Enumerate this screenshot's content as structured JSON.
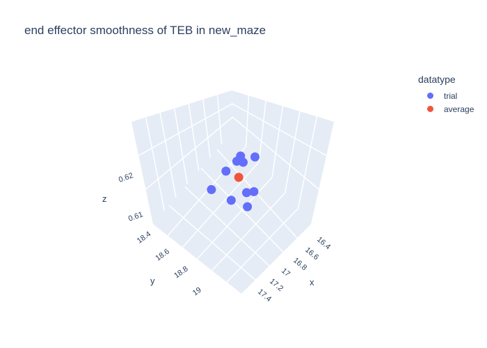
{
  "chart_data": {
    "type": "scatter3d",
    "title": "end effector smoothness of TEB in new_maze",
    "axes": {
      "x": {
        "label": "x",
        "ticks": [
          "16.4",
          "16.6",
          "16.8",
          "17",
          "17.2",
          "17.4"
        ]
      },
      "y": {
        "label": "y",
        "ticks": [
          "18.4",
          "18.6",
          "18.8",
          "19"
        ]
      },
      "z": {
        "label": "z",
        "ticks": [
          "0.61",
          "0.62"
        ]
      }
    },
    "legend": {
      "title": "datatype",
      "placement": "top-right",
      "items": [
        {
          "label": "trial",
          "color": "#636efa"
        },
        {
          "label": "average",
          "color": "#ef553b"
        }
      ]
    },
    "series": [
      {
        "name": "trial",
        "color": "#636efa",
        "points": [
          {
            "x": 16.95,
            "y": 18.45,
            "z": 0.62
          },
          {
            "x": 16.85,
            "y": 18.6,
            "z": 0.62
          },
          {
            "x": 16.7,
            "y": 18.55,
            "z": 0.619
          },
          {
            "x": 16.75,
            "y": 18.65,
            "z": 0.62
          },
          {
            "x": 16.6,
            "y": 18.75,
            "z": 0.617
          },
          {
            "x": 16.5,
            "y": 18.95,
            "z": 0.614
          },
          {
            "x": 17.1,
            "y": 18.7,
            "z": 0.616
          },
          {
            "x": 17.15,
            "y": 18.6,
            "z": 0.615
          },
          {
            "x": 17.2,
            "y": 18.75,
            "z": 0.614
          },
          {
            "x": 16.9,
            "y": 18.85,
            "z": 0.614
          }
        ]
      },
      {
        "name": "average",
        "color": "#ef553b",
        "points": [
          {
            "x": 16.85,
            "y": 18.68,
            "z": 0.617
          }
        ]
      }
    ]
  }
}
